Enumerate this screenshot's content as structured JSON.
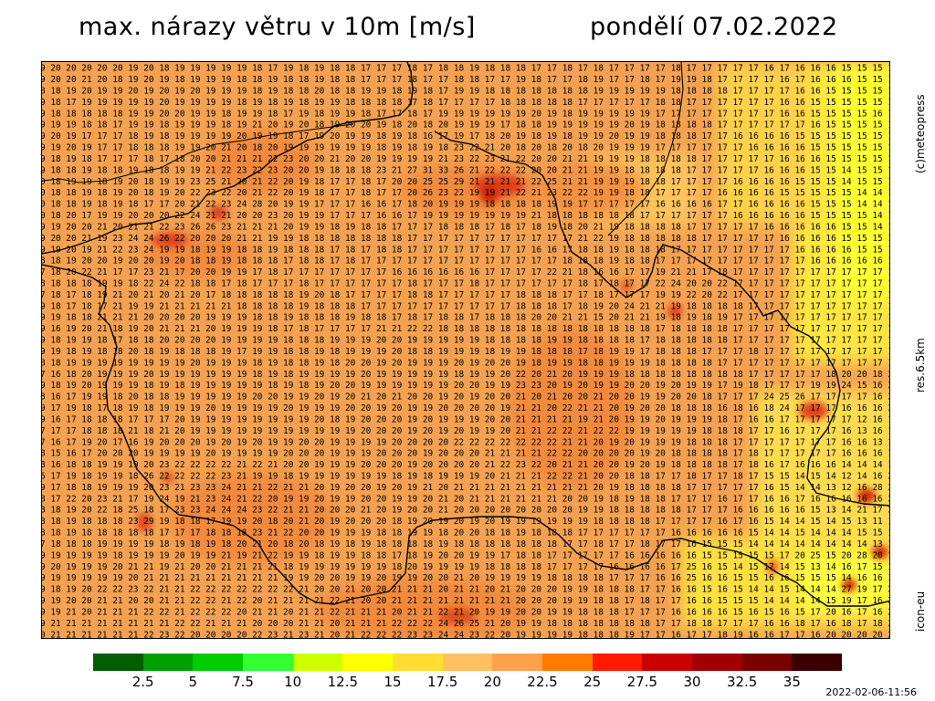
{
  "header": {
    "title": "max. nárazy větru v 10m [m/s]",
    "date": "pondělí 07.02.2022"
  },
  "side_labels": {
    "copyright": "(c)meteopress",
    "resolution": "res.6.5km",
    "model": "icon-eu"
  },
  "footer": {
    "timestamp": "2022-02-06-11:56"
  },
  "legend": {
    "colors": [
      "#005e00",
      "#00a000",
      "#00cc00",
      "#33ff33",
      "#ccff00",
      "#ffff00",
      "#ffdd33",
      "#ffc060",
      "#ffa04a",
      "#ff7a00",
      "#ff1a00",
      "#cc0000",
      "#a00000",
      "#7a0000",
      "#3c0000"
    ],
    "labels": [
      "2.5",
      "5",
      "7.5",
      "10",
      "12.5",
      "15",
      "17.5",
      "20",
      "22.5",
      "25",
      "27.5",
      "30",
      "32.5",
      "35"
    ]
  },
  "map": {
    "value_rows": [
      "9 20 20 20 20 20 19 20 18 19 19 19 19 19 18 17 19 18 19 18 18 17 17 17 18 17 18 18 19 18 18 18 17 17 18 17 18 17 17 17 17 18 17 17 17 17 17 16 17 16 16 16 15 15 15 1",
      "9 20 20 21 20 18 19 20 19 18 19 19 19 18 18 19 18 18 19 18 18 17 17 17 18 17 17 18 18 17 17 19 18 17 17 18 19 17 17 18 17 19 19 18 17 17 17 17 16 17 16 16 16 15 15 1",
      "8 18 19 20 19 19 20 19 20 19 20 19 19 19 18 19 18 18 20 18 18 19 19 18 19 18 17 19 19 18 18 18 18 18 18 18 19 19 19 19 19 18 18 18 18 17 17 17 17 16 16 15 15 15 15 1",
      "9 18 17 19 19 19 19 19 20 19 19 19 19 18 19 18 19 18 19 19 18 18 18 18 17 18 17 17 17 17 18 18 18 18 18 17 17 17 17 17 18 18 17 17 17 17 17 17 16 16 15 15 15 15 15 1",
      "9 18 18 18 18 18 19 19 20 20 19 19 18 19 19 18 17 19 18 19 19 18 17 17 18 17 19 19 19 19 19 19 20 19 18 19 19 19 19 19 17 17 17 17 17 17 17 17 16 16 15 15 15 15 16 1",
      "9 19 19 18 18 17 19 19 18 19 19 19 18 19 21 20 19 20 18 19 20 20 19 18 20 18 20 19 19 19 17 18 18 19 19 19 19 19 20 19 18 18 18 18 17 17 17 17 17 17 16 15 15 15 15 1",
      "9 20 19 17 17 17 18 19 18 19 19 19 19 20 19 19 18 17 19 20 19 19 18 19 18 16 17 19 17 18 20 19 18 19 18 19 19 20 19 19 18 18 18 17 17 16 16 16 16 15 15 15 15 15 15 1",
      "9 19 20 19 17 17 18 18 18 19 19 20 21 20 18 20 19 19 19 19 19 19 18 19 18 19 18 23 22 21 20 18 20 18 20 18 20 19 19 19 17 17 17 17 17 17 16 16 16 16 15 15 15 15 15 1",
      "9 18 19 18 17 17 17 18 17 18 20 20 21 21 21 22 23 20 20 21 20 20 19 19 19 19 21 23 22 23 21 22 20 20 21 21 19 19 19 18 18 18 18 17 17 17 17 17 16 16 16 15 15 15 15 1",
      "9 18 18 19 18 18 19 18 18 19 19 21 22 23 22 23 20 20 19 18 18 18 23 21 27 31 33 26 21 22 22 22 20 20 21 21 19 19 18 18 18 18 17 17 17 17 17 16 16 16 15 15 14 15 15 1",
      "0 18 19 19 18 19 20 18 19 19 23 25 21 20 21 22 20 19 18 17 17 18 17 20 20 25 25 29 21 21 21 21 22 25 21 21 19 19 19 18 18 17 17 17 17 16 16 16 16 15 15 15 14 15 15 1",
      "0 18 18 19 18 19 20 18 19 20 22 23 22 20 21 22 20 19 18 17 17 18 17 17 20 26 23 22 19 19 21 22 21 23 22 22 19 19 18 18 17 17 17 17 16 16 16 16 15 15 15 15 15 14 14 1",
      "0 18 18 19 18 19 18 17 17 20 21 22 23 24 28 20 19 19 17 17 17 16 16 17 18 20 19 19 19 18 18 18 18 19 19 17 17 17 17 17 16 16 16 16 17 17 16 16 16 16 15 15 15 14 14 1",
      "0 18 20 17 19 19 20 20 20 22 24 21 21 20 20 23 20 19 19 17 17 17 16 16 17 19 19 19 19 19 19 19 21 18 18 18 18 18 18 17 17 17 17 17 17 16 16 16 16 16 15 15 15 15 14 1",
      "9 19 20 20 21 20 21 21 22 23 26 26 23 21 21 21 20 19 19 18 19 18 18 17 17 17 18 18 18 17 18 17 18 19 18 20 21 19 18 18 18 18 17 17 17 17 17 16 16 16 16 16 15 15 14 1",
      "9 20 20 21 19 23 24 24 26 22 20 20 20 21 21 19 19 18 18 18 18 18 18 18 17 17 17 17 17 17 17 17 17 17 17 21 22 19 18 18 18 18 18 17 17 17 17 17 16 16 16 16 15 15 15 1",
      "9 19 20 19 21 22 23 24 19 19 18 19 19 18 18 19 18 18 18 17 18 17 18 18 17 17 17 17 17 17 17 17 16 16 17 18 18 19 18 18 18 17 17 17 17 17 17 17 17 16 16 16 16 15 15 1",
      "8 18 19 20 20 19 20 20 19 20 18 18 19 18 18 18 17 18 18 17 18 17 17 17 17 17 17 17 17 17 17 17 17 17 18 18 18 19 18 18 17 17 17 17 17 17 17 17 17 17 16 16 16 16 16 1",
      "7 18 20 22 21 17 17 23 21 17 20 20 19 19 17 18 17 17 17 17 17 17 17 16 16 16 16 16 16 17 17 17 17 22 21 18 16 16 17 17 19 21 21 17 18 17 17 17 17 17 17 17 17 17 17 1",
      "8 18 18 18 19 19 18 22 24 22 18 18 17 18 17 17 17 18 17 17 17 17 17 17 18 17 17 17 18 17 17 17 17 17 17 18 17 18 17 17 22 24 20 20 22 17 17 17 17 17 17 17 17 17 17 1",
      "7 18 17 18 19 21 20 21 20 21 20 17 18 18 18 18 18 19 20 18 17 17 17 17 18 18 17 17 17 17 17 18 18 18 17 17 18 17 17 17 19 19 22 20 22 17 17 17 17 17 17 17 17 17 17 1",
      "9 18 17 18 17 21 19 19 21 21 21 21 21 18 18 18 18 19 18 18 18 17 17 17 17 17 17 17 17 17 17 18 18 18 17 18 19 20 24 21 21 19 18 18 18 18 17 17 17 17 17 17 17 17 17 1",
      "9 19 18 18 21 21 21 20 20 20 20 19 19 19 18 18 19 18 18 18 19 18 18 17 18 17 18 18 17 18 18 18 20 20 21 21 15 20 21 21 19 18 19 18 19 17 17 17 17 17 17 17 17 17 17 1",
      "9 16 19 20 21 18 19 20 21 21 21 20 19 19 19 18 17 18 17 17 17 17 21 21 22 22 18 18 18 18 18 18 18 18 18 18 18 18 18 18 17 18 18 18 18 17 17 17 17 17 17 17 17 17 17 1",
      "9 18 19 19 18 17 18 18 20 20 20 20 19 19 19 19 18 18 18 19 19 19 20 20 19 19 19 19 19 18 18 18 18 19 19 18 18 18 18 17 18 18 18 18 18 17 17 17 17 17 17 17 17 17 17 1",
      "9 19 18 19 18 18 20 18 19 18 18 18 19 17 19 19 18 18 19 18 19 19 19 20 18 18 19 19 19 18 19 19 18 18 18 17 18 19 19 17 18 18 18 17 17 17 18 17 17 17 17 17 17 17 17 1",
      "8 18 19 19 19 19 19 19 19 19 20 19 19 19 18 19 18 18 19 18 20 20 19 20 19 19 19 20 19 20 20 19 18 19 19 18 18 19 19 19 18 18 18 18 17 17 17 17 17 17 17 17 17 17 17 1",
      "7 16 18 20 19 19 19 20 19 19 19 19 19 19 18 19 18 19 19 19 19 20 19 19 19 19 19 18 19 19 20 22 20 21 20 19 19 19 18 18 18 18 18 18 18 18 17 17 17 17 17 18 20 20 18 2",
      "9 18 19 20 19 19 19 18 19 18 19 19 19 19 19 18 19 18 19 20 20 19 19 19 19 19 19 20 20 19 19 23 23 20 19 20 19 19 20 20 19 20 19 19 17 19 18 17 17 17 19 19 24 15 16 2",
      "8 16 17 19 19 18 20 18 18 19 19 19 19 19 20 20 19 19 20 19 20 21 20 21 20 20 19 20 19 20 20 21 20 21 20 20 21 20 20 19 19 20 20 18 17 17 17 24 25 26 17 17 17 17 16 2",
      "9 17 19 18 17 18 19 18 19 19 19 20 19 19 19 19 20 19 19 19 20 20 19 20 19 19 20 20 20 20 19 21 21 20 22 21 21 20 19 20 20 18 18 18 16 18 16 18 24 17 17 17 16 16 16 2",
      "9 16 17 18 18 18 17 17 17 20 19 19 19 19 19 19 19 19 20 18 19 20 20 20 19 20 19 19 19 20 20 21 21 21 21 19 21 20 19 19 20 19 19 19 18 17 16 16 17 17 17 17 17 12 16 1",
      "7 17 17 18 18 18 21 18 21 20 19 19 19 19 19 19 19 19 19 19 19 20 20 20 19 20 19 20 19 19 20 21 21 22 22 21 22 22 19 19 19 19 19 18 18 18 17 17 16 17 17 17 16 13 16 1",
      "7 16 17 19 20 17 16 19 20 20 20 19 20 19 20 19 19 20 20 19 19 19 19 20 20 20 20 22 22 22 22 22 22 22 21 21 20 19 20 19 19 19 18 18 18 17 17 17 17 17 17 17 16 16 13 1",
      "8 15 16 17 20 20 20 19 19 19 19 20 19 19 19 19 20 20 20 19 19 19 20 20 20 19 20 20 20 21 21 21 21 22 22 20 20 20 20 19 20 18 18 18 18 17 18 17 17 17 17 17 16 16 16 1",
      "8 16 18 18 19 19 19 20 23 22 22 22 22 21 22 21 20 20 19 19 19 20 20 20 19 20 20 20 20 21 22 23 22 20 21 21 20 20 19 20 19 18 18 18 18 17 18 16 17 16 16 16 14 14 14 1",
      "6 17 19 18 19 19 18 26 22 22 22 22 23 21 19 19 18 19 19 19 19 19 19 18 19 18 19 19 19 20 21 21 21 22 22 21 20 20 18 18 17 17 18 17 17 18 17 15 15 14 15 14 12 14 16 2",
      "9 17 18 18 19 19 19 20 23 21 23 23 24 21 21 22 21 21 20 19 20 20 19 20 19 21 20 21 21 21 21 21 21 21 21 21 20 19 18 18 18 18 17 17 17 17 17 16 15 14 14 13 12 16 28 2",
      "8 17 22 20 23 21 17 19 24 19 21 23 24 21 22 20 19 19 20 19 19 20 20 19 19 20 21 20 21 21 21 21 21 21 20 20 19 18 19 18 18 17 17 17 16 17 17 16 16 17 16 16 16 16 16 2",
      "8 18 19 20 22 18 25 18 17 23 23 24 24 24 23 22 21 21 20 20 20 21 20 19 20 20 21 20 20 20 20 20 20 20 20 19 19 18 18 18 18 18 17 17 17 16 16 16 16 16 15 13 14 21 17 2",
      "8 18 19 18 18 18 23 29 19 18 18 17 19 19 20 18 20 21 20 19 20 20 20 18 19 20 19 20 19 20 19 19 19 19 19 19 18 18 18 18 17 17 17 17 16 17 16 15 14 14 15 14 15 13 11 1",
      "8 18 19 18 18 18 18 18 17 17 17 18 18 18 23 21 22 20 20 19 19 19 18 18 19 19 18 20 20 18 18 19 18 18 18 17 17 17 17 17 17 16 16 16 16 16 15 14 14 15 14 14 14 15 15 1",
      "7 18 18 18 19 19 19 19 18 19 18 19 18 20 21 20 18 20 18 19 18 19 18 18 18 18 19 18 18 18 18 18 18 18 17 17 18 17 17 18 17 17 16 15 15 15 14 14 14 14 14 14 14 14 13 1",
      "9 19 19 19 19 18 19 19 19 20 19 19 21 19 21 22 19 19 18 19 19 18 18 17 18 19 20 20 19 19 17 18 18 17 17 17 17 17 16 16 16 16 16 15 15 15 15 15 17 20 25 15 20 28 20 1",
      "9 20 19 19 19 20 21 21 19 21 20 20 21 21 21 21 18 19 19 19 19 19 19 18 20 19 19 19 19 18 18 18 18 17 17 17 17 16 16 16 16 17 25 16 15 14 15 17 14 15 13 14 16 17 15 1",
      "9 19 19 19 19 19 20 21 21 21 21 21 21 21 21 21 19 19 20 20 19 19 20 19 19 20 20 21 20 19 19 19 19 18 18 18 18 17 17 17 16 16 25 16 16 15 15 16 16 15 15 15 14 16 16 1",
      "9 18 19 20 22 22 23 22 21 21 22 22 22 22 22 22 22 21 20 20 21 20 20 21 21 21 20 21 21 20 21 20 20 20 19 19 18 18 18 17 17 16 16 15 16 15 14 14 15 14 14 14 27 19 17 2",
      "9 19 20 20 21 21 20 20 21 21 22 22 21 22 20 21 21 21 21 22 21 20 20 21 21 21 21 21 21 21 21 20 20 20 19 19 18 18 17 18 17 17 16 16 15 15 15 14 14 14 14 15 19 17 16 2",
      "9 19 21 20 21 21 21 22 22 21 22 22 22 20 21 21 20 21 21 22 21 21 21 20 21 21 22 21 20 19 19 20 20 19 19 18 18 18 17 17 17 16 16 16 16 15 16 15 16 15 17 20 16 17 16 2",
      "9 21 21 21 21 21 21 21 21 22 22 21 21 21 20 20 20 21 21 20 21 21 21 22 22 22 24 26 25 21 20 19 19 18 18 18 18 18 18 18 17 17 18 18 17 17 17 16 16 18 17 16 18 17 18 2",
      "0 21 21 21 21 21 21 22 23 22 20 20 20 20 22 23 21 23 21 20 21 22 22 22 23 23 24 24 23 22 20 19 19 19 19 18 18 18 19 17 17 16 17 17 18 19 16 16 17 17 16 20 20 20 20 2"
    ]
  }
}
